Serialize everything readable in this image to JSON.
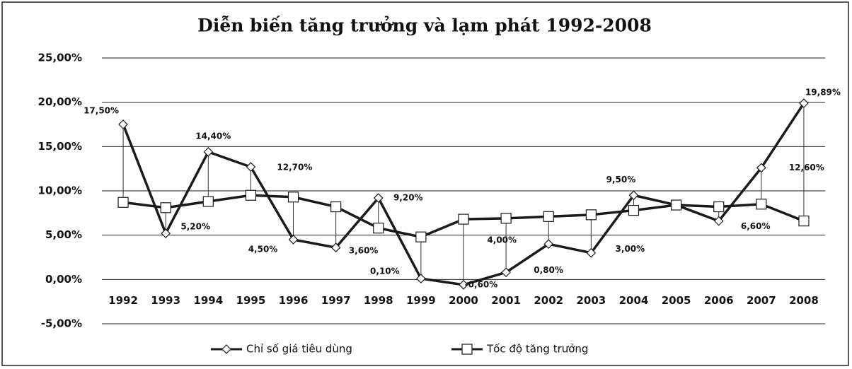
{
  "chart_data": {
    "type": "line",
    "title": "Diễn biến tăng trưởng và lạm phát 1992-2008",
    "categories": [
      "1992",
      "1993",
      "1994",
      "1995",
      "1996",
      "1997",
      "1998",
      "1999",
      "2000",
      "2001",
      "2002",
      "2003",
      "2004",
      "2005",
      "2006",
      "2007",
      "2008"
    ],
    "series": [
      {
        "name": "Chỉ số giá tiêu dùng",
        "color": "#1a1a1a",
        "marker": "diamond",
        "values": [
          17.5,
          5.2,
          14.4,
          12.7,
          4.5,
          3.6,
          9.2,
          0.1,
          -0.6,
          0.8,
          4.0,
          3.0,
          9.5,
          8.4,
          6.6,
          12.6,
          19.89
        ],
        "value_labels": [
          "17,50%",
          "5,20%",
          "14,40%",
          "12,70%",
          "4,50%",
          "3,60%",
          "9,20%",
          "0,10%",
          "-0,60%",
          "0,80%",
          "4,00%",
          "3,00%",
          "9,50%",
          null,
          "6,60%",
          "12,60%",
          "19,89%"
        ]
      },
      {
        "name": "Tốc độ tăng trưởng",
        "color": "#1a1a1a",
        "marker": "square",
        "values": [
          8.7,
          8.1,
          8.8,
          9.5,
          9.3,
          8.2,
          5.8,
          4.8,
          6.8,
          6.9,
          7.1,
          7.3,
          7.8,
          8.4,
          8.2,
          8.5,
          6.6
        ]
      }
    ],
    "ylim": [
      -5,
      25
    ],
    "yticks": [
      {
        "value": -5,
        "label": "-5,00%"
      },
      {
        "value": 0,
        "label": "0,00%"
      },
      {
        "value": 5,
        "label": "5,00%"
      },
      {
        "value": 10,
        "label": "10,00%"
      },
      {
        "value": 15,
        "label": "15,00%"
      },
      {
        "value": 20,
        "label": "20,00%"
      },
      {
        "value": 25,
        "label": "25,00%"
      }
    ],
    "grid": true,
    "legend": "bottom"
  }
}
